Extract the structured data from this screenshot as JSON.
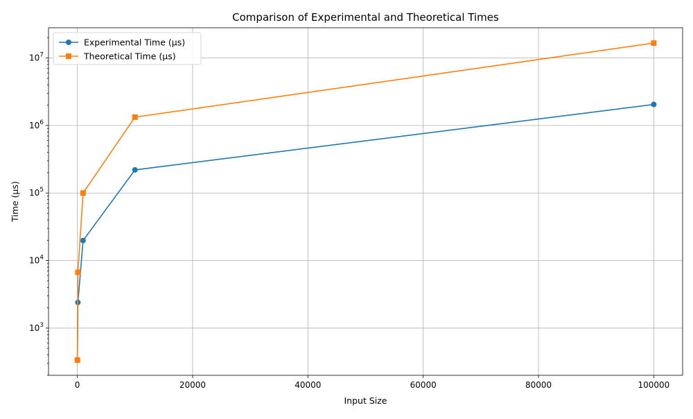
{
  "chart_data": {
    "type": "line",
    "title": "Comparison of Experimental and Theoretical Times",
    "xlabel": "Input Size",
    "ylabel": "Time (µs)",
    "x": [
      10,
      100,
      1000,
      10000,
      100000
    ],
    "xlim": [
      -5000,
      105000
    ],
    "ylim": [
      200,
      28000000
    ],
    "yscale": "log",
    "grid": true,
    "legend_position": "top-left",
    "x_ticks": [
      0,
      20000,
      40000,
      60000,
      80000,
      100000
    ],
    "x_tick_labels": [
      "0",
      "20000",
      "40000",
      "60000",
      "80000",
      "100000"
    ],
    "y_ticks": [
      1000,
      10000,
      100000,
      1000000,
      10000000
    ],
    "y_tick_labels": [
      {
        "base": "10",
        "exp": "3"
      },
      {
        "base": "10",
        "exp": "4"
      },
      {
        "base": "10",
        "exp": "5"
      },
      {
        "base": "10",
        "exp": "6"
      },
      {
        "base": "10",
        "exp": "7"
      }
    ],
    "series": [
      {
        "name": "Experimental Time (µs)",
        "values": [
          340,
          2400,
          19800,
          220000,
          2050000
        ],
        "color": "#1f77b4",
        "marker": "circle"
      },
      {
        "name": "Theoretical Time (µs)",
        "values": [
          335,
          6700,
          100000,
          1330000,
          16600000
        ],
        "color": "#ff7f0e",
        "marker": "square"
      }
    ]
  }
}
